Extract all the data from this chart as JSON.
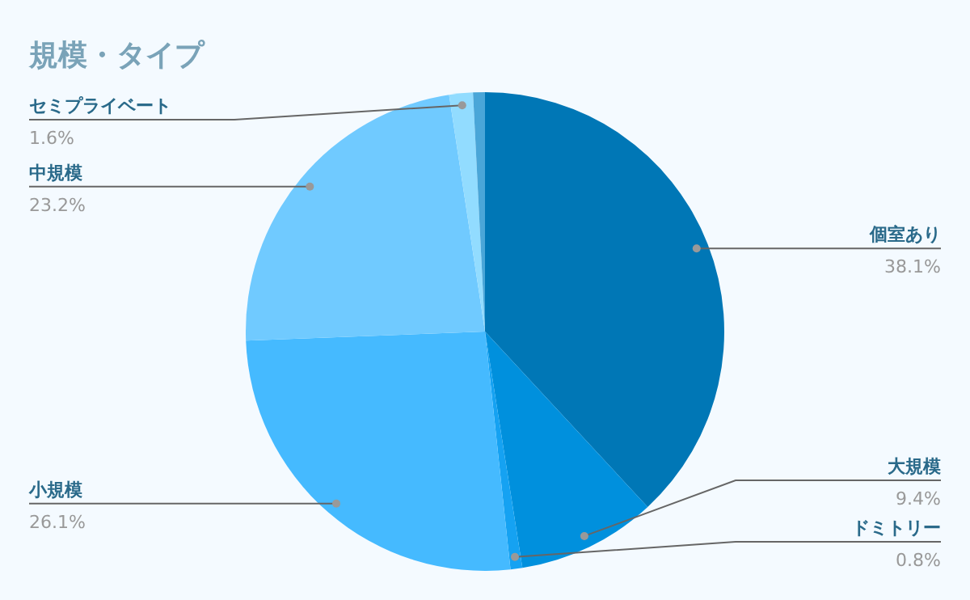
{
  "chart_data": {
    "type": "pie",
    "title": "規模・タイプ",
    "categories": [
      "個室あり",
      "大規模",
      "ドミトリー",
      "小規模",
      "中規模",
      "セミプライベート",
      null
    ],
    "values": [
      38.1,
      9.4,
      0.8,
      26.1,
      23.2,
      1.6,
      0.8
    ],
    "colors": [
      "#0077b6",
      "#0090dd",
      "#15a2f2",
      "#45baff",
      "#70caff",
      "#92dcff",
      "#4aa6d8"
    ],
    "value_labels": [
      "38.1%",
      "9.4%",
      "0.8%",
      "26.1%",
      "23.2%",
      "1.6%",
      null
    ]
  }
}
